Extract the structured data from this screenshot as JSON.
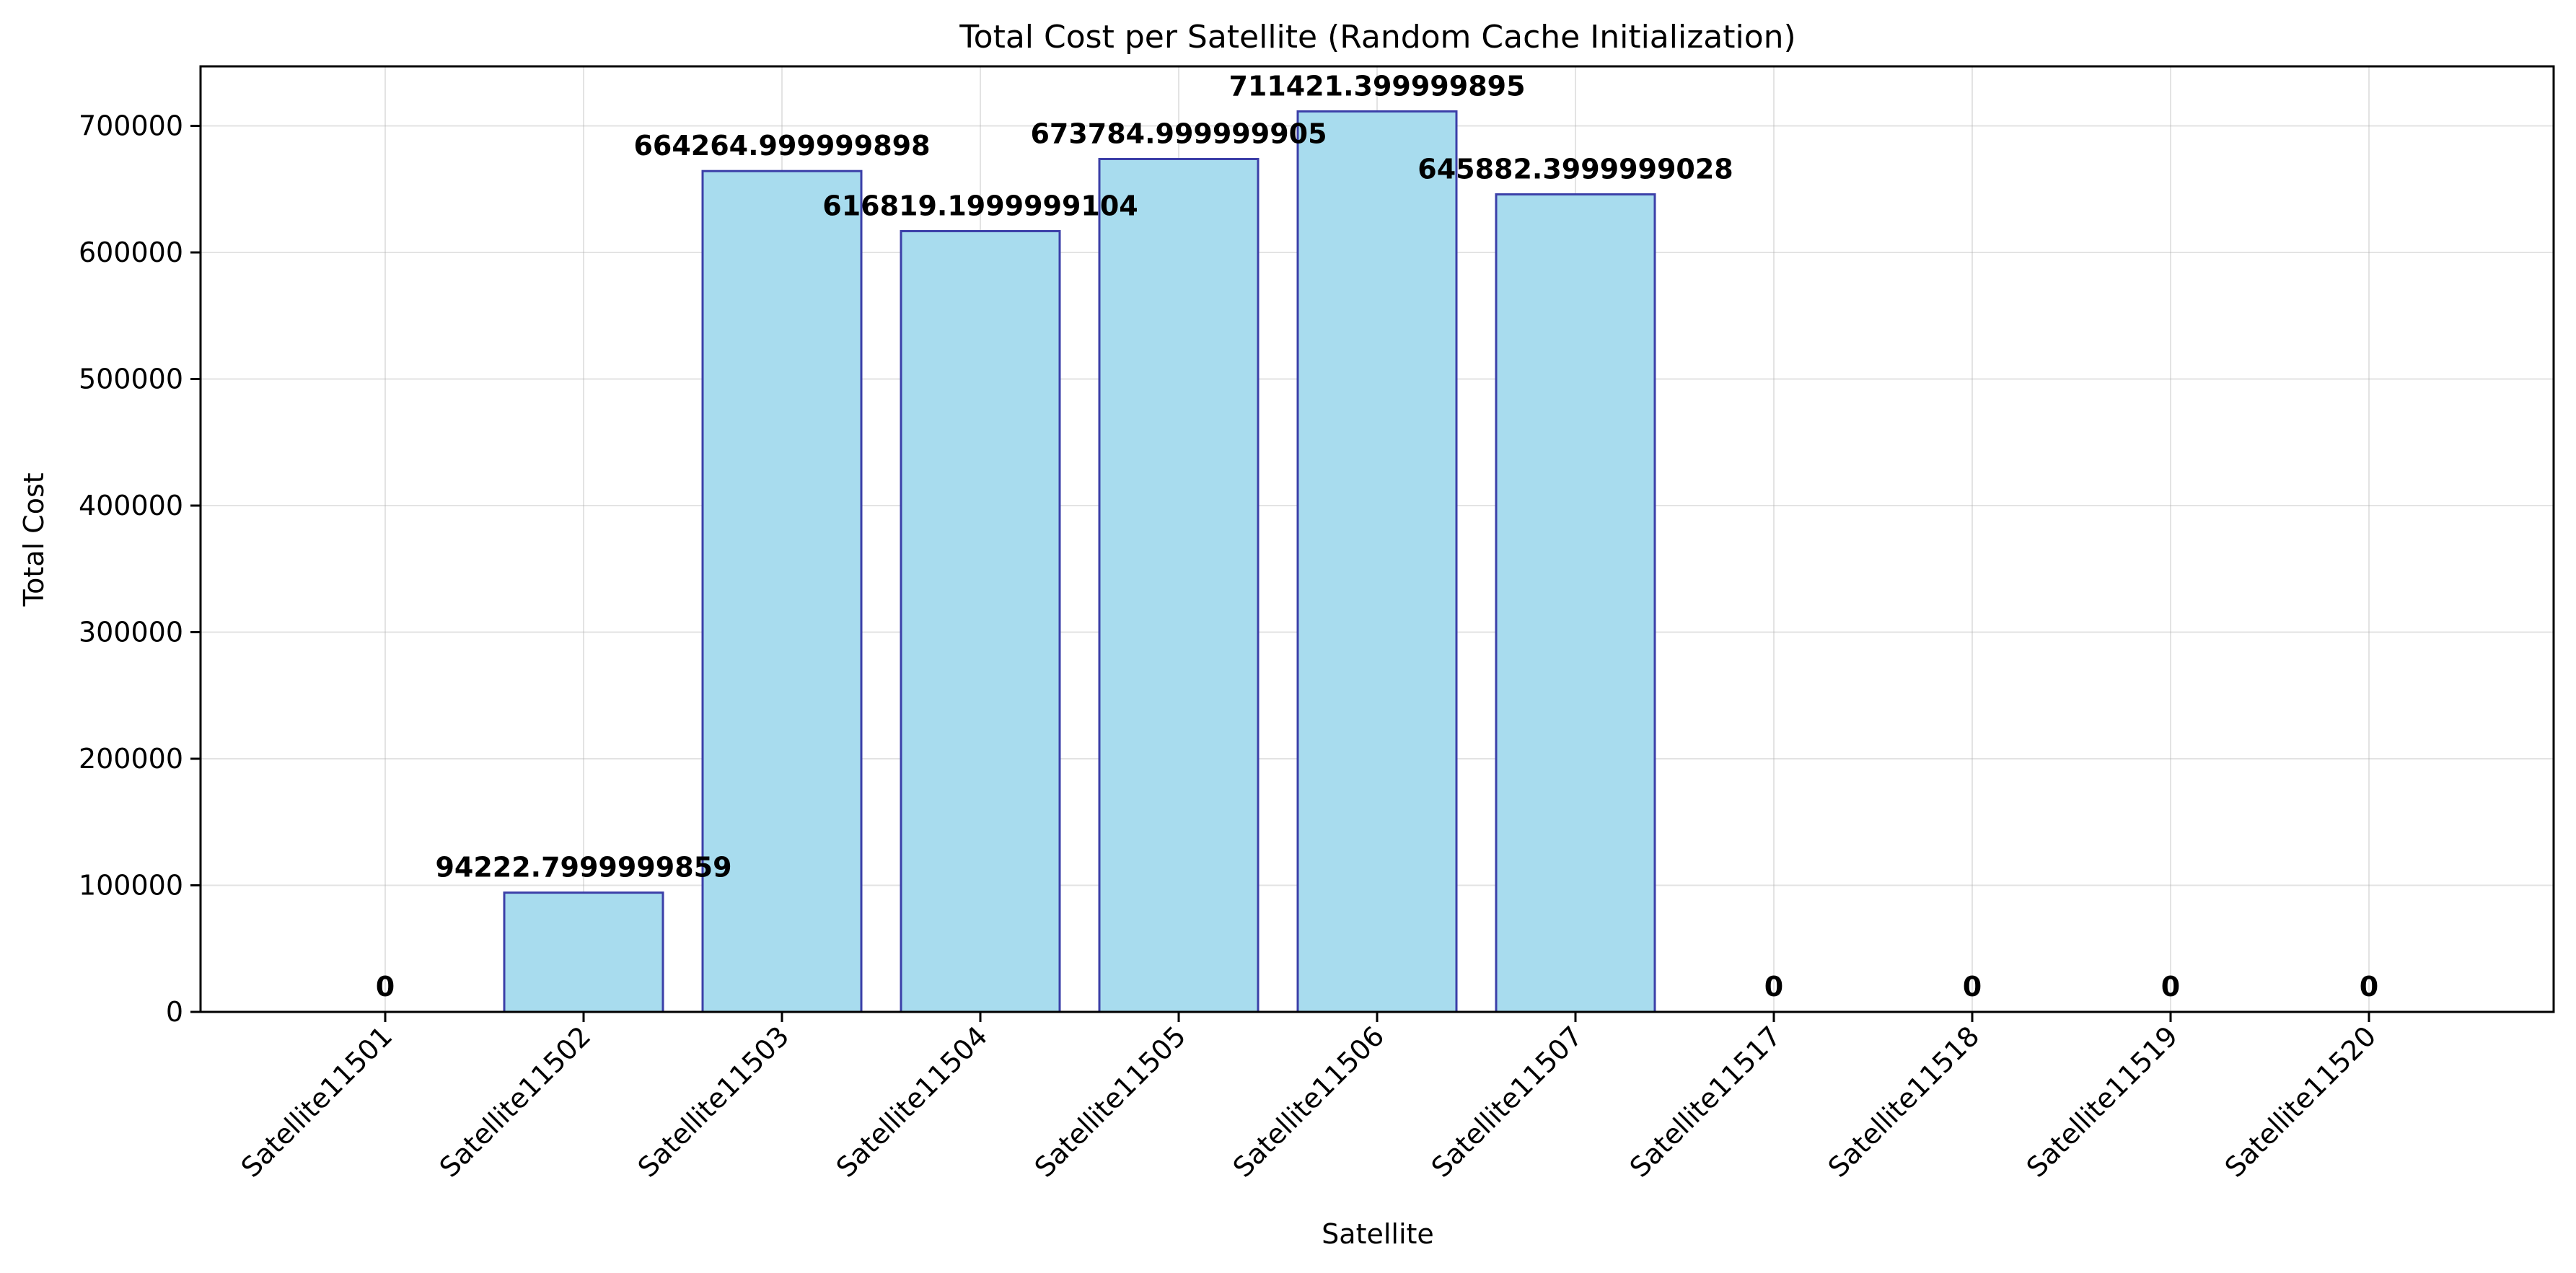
{
  "chart_data": {
    "type": "bar",
    "title": "Total Cost per Satellite (Random Cache Initialization)",
    "xlabel": "Satellite",
    "ylabel": "Total Cost",
    "categories": [
      "Satellite11501",
      "Satellite11502",
      "Satellite11503",
      "Satellite11504",
      "Satellite11505",
      "Satellite11506",
      "Satellite11507",
      "Satellite11517",
      "Satellite11518",
      "Satellite11519",
      "Satellite11520"
    ],
    "values": [
      0,
      94222.7999999859,
      664264.999999898,
      616819.1999999104,
      673784.999999905,
      711421.399999895,
      645882.3999999028,
      0,
      0,
      0,
      0
    ],
    "data_labels": [
      "0",
      "94222.7999999859",
      "664264.999999898",
      "616819.1999999104",
      "673784.999999905",
      "711421.399999895",
      "645882.3999999028",
      "0",
      "0",
      "0",
      "0"
    ],
    "yticks": [
      0,
      100000,
      200000,
      300000,
      400000,
      500000,
      600000,
      700000
    ],
    "ytick_labels": [
      "0",
      "100000",
      "200000",
      "300000",
      "400000",
      "500000",
      "600000",
      "700000"
    ],
    "ylim": [
      0,
      747000
    ],
    "grid": true,
    "legend": "none",
    "colors": {
      "bar_fill": "#a8dcee",
      "bar_edge": "#3b3fa8",
      "grid": "#b0b0b0",
      "axis": "#000000"
    }
  }
}
